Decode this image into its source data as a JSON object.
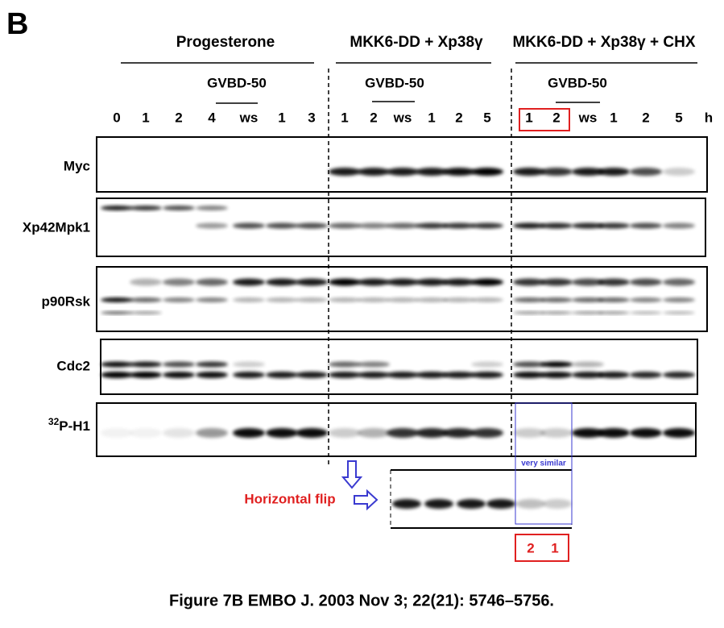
{
  "panel_label": "B",
  "groups": [
    {
      "title": "Progesterone",
      "gvbd": "GVBD-50",
      "lanes": [
        "0",
        "1",
        "2",
        "4",
        "ws",
        "1",
        "3"
      ]
    },
    {
      "title": "MKK6-DD + Xp38γ",
      "gvbd": "GVBD-50",
      "lanes": [
        "1",
        "2",
        "ws",
        "1",
        "2",
        "5"
      ]
    },
    {
      "title": "MKK6-DD + Xp38γ + CHX",
      "gvbd": "GVBD-50",
      "lanes": [
        "1",
        "2",
        "ws",
        "1",
        "2",
        "5"
      ]
    }
  ],
  "time_unit": "h",
  "rows": [
    {
      "label": "Myc"
    },
    {
      "label": "Xp42Mpk1"
    },
    {
      "label": "p90Rsk"
    },
    {
      "label": "Cdc2"
    },
    {
      "superscript": "32",
      "label": "P-H1"
    }
  ],
  "annotations": {
    "similar": "very similar",
    "flip": "Horizontal flip",
    "flipped_lanes": [
      "2",
      "1"
    ]
  },
  "caption": "Figure 7B EMBO J. 2003 Nov 3; 22(21): 5746–5756."
}
